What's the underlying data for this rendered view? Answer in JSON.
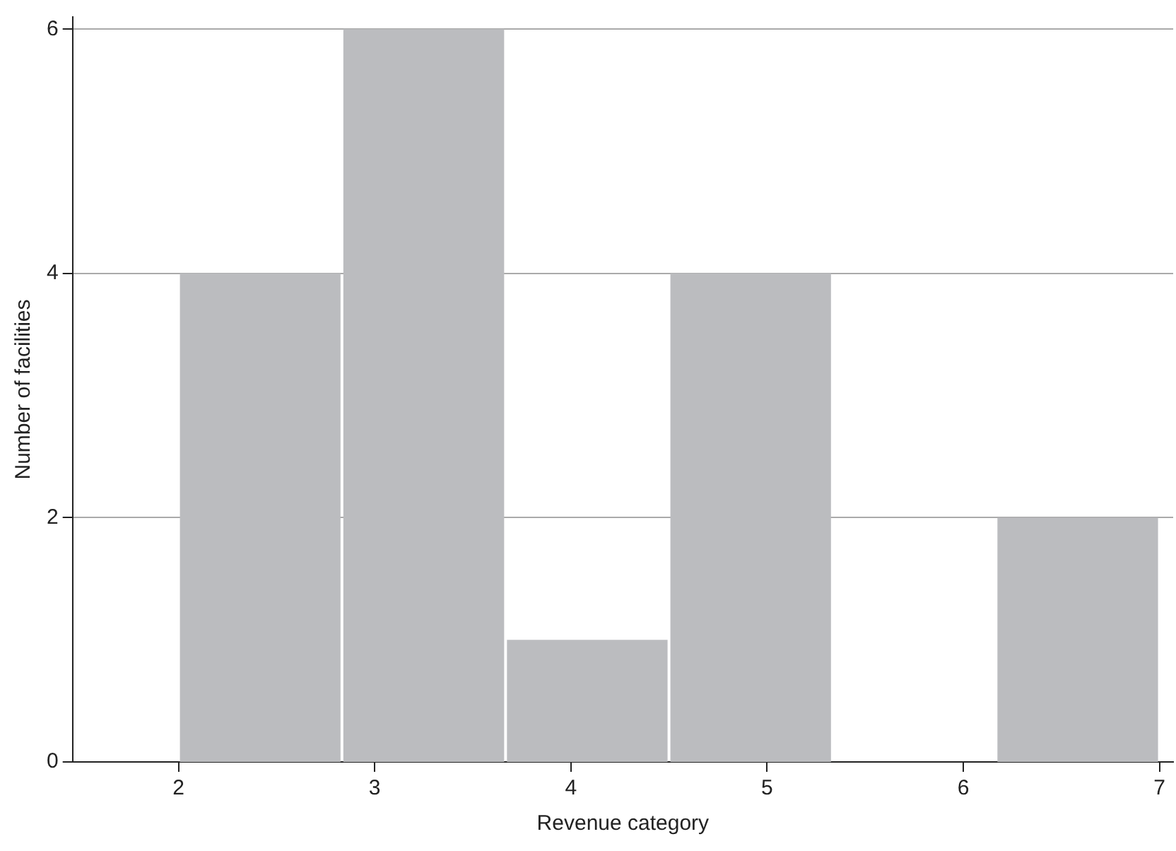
{
  "chart_data": {
    "type": "histogram",
    "xlabel": "Revenue category",
    "ylabel": "Number of facilities",
    "bins": [
      2,
      2.833,
      3.667,
      4.5,
      5.333,
      6.167,
      7
    ],
    "values": [
      4,
      6,
      1,
      4,
      0,
      2
    ],
    "color": "#bbbcbf",
    "xlim": [
      1.46,
      7.07
    ],
    "xticks": [
      2,
      3,
      4,
      5,
      6,
      7
    ],
    "ylim": [
      0,
      6.1
    ],
    "yticks": [
      0,
      2,
      4,
      6
    ],
    "grid": "y",
    "legend": false
  }
}
